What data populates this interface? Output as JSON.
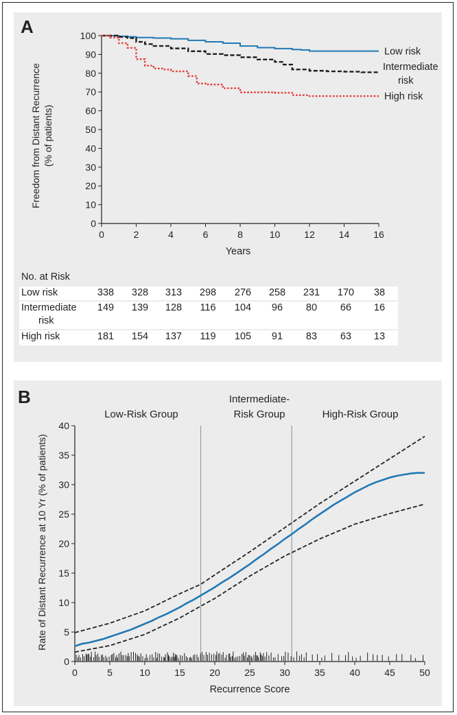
{
  "figure": {
    "panels": [
      {
        "letter": "A",
        "ylabel_line1": "Freedom from Distant Recurrence",
        "ylabel_line2": "(% of patients)",
        "xlabel": "Years",
        "risk_table": {
          "title": "No. at Risk",
          "rows": [
            {
              "label": "Low risk",
              "label_line2": "",
              "values": [
                "338",
                "328",
                "313",
                "298",
                "276",
                "258",
                "231",
                "170",
                "38"
              ]
            },
            {
              "label": "Intermediate",
              "label_line2": "risk",
              "values": [
                "149",
                "139",
                "128",
                "116",
                "104",
                "96",
                "80",
                "66",
                "16"
              ]
            },
            {
              "label": "High risk",
              "label_line2": "",
              "values": [
                "181",
                "154",
                "137",
                "119",
                "105",
                "91",
                "83",
                "63",
                "13"
              ]
            }
          ]
        }
      },
      {
        "letter": "B",
        "ylabel": "Rate of Distant Recurrence at 10 Yr (% of patients)",
        "xlabel": "Recurrence Score",
        "group_labels": [
          {
            "line1": "Low-Risk Group",
            "line2": ""
          },
          {
            "line1": "Intermediate-",
            "line2": "Risk Group"
          },
          {
            "line1": "High-Risk Group",
            "line2": ""
          }
        ]
      }
    ]
  },
  "chart_data": [
    {
      "type": "line",
      "panel": "A",
      "xlim": [
        0,
        16
      ],
      "ylim": [
        0,
        100
      ],
      "xticks": [
        0,
        2,
        4,
        6,
        8,
        10,
        12,
        14,
        16
      ],
      "yticks": [
        0,
        10,
        20,
        30,
        40,
        50,
        60,
        70,
        80,
        90,
        100
      ],
      "grid": false,
      "series": [
        {
          "name": "Low risk",
          "color": "#1f78b4",
          "style": "solid",
          "label_lines": [
            "Low risk"
          ],
          "x": [
            0,
            0.5,
            1,
            1.5,
            2,
            3,
            4,
            5,
            6,
            7,
            8,
            9,
            10,
            11,
            11.5,
            12,
            13,
            14,
            15,
            16
          ],
          "y": [
            100,
            100,
            99.7,
            99.4,
            99,
            98.7,
            98.3,
            97.5,
            96.7,
            96,
            94.5,
            93.6,
            93.1,
            92.6,
            92.4,
            91.8,
            91.8,
            91.8,
            91.8,
            91.8
          ]
        },
        {
          "name": "Intermediate risk",
          "color": "#231f20",
          "style": "dashed",
          "label_lines": [
            "Intermediate",
            "risk"
          ],
          "x": [
            0,
            0.5,
            1,
            1.5,
            2,
            2.5,
            3,
            4,
            5,
            6,
            7,
            8,
            9,
            10,
            10.5,
            11,
            12,
            13,
            14,
            15,
            16
          ],
          "y": [
            100,
            100,
            99.3,
            98.7,
            96.7,
            95.5,
            94.5,
            93.2,
            91.7,
            90.2,
            89.6,
            88.5,
            87.3,
            86,
            84.6,
            82,
            81.3,
            81,
            80.8,
            80.5,
            80.3
          ]
        },
        {
          "name": "High risk",
          "color": "#e53935",
          "style": "dotted",
          "label_lines": [
            "High risk"
          ],
          "x": [
            0,
            0.5,
            1,
            1.5,
            2,
            2.5,
            3,
            3.5,
            4,
            5,
            5.5,
            6,
            6.5,
            7,
            8,
            9,
            10,
            11,
            12,
            13,
            14,
            15,
            16
          ],
          "y": [
            100,
            99,
            96,
            93.5,
            87.5,
            84,
            82.5,
            82,
            81,
            78.5,
            74.5,
            74,
            74,
            72,
            69.8,
            69.8,
            69.6,
            68.3,
            67.8,
            67.8,
            67.8,
            67.8,
            67.8
          ]
        }
      ]
    },
    {
      "type": "line",
      "panel": "B",
      "xlim": [
        0,
        50
      ],
      "ylim": [
        0,
        40
      ],
      "xticks": [
        0,
        5,
        10,
        15,
        20,
        25,
        30,
        35,
        40,
        45,
        50
      ],
      "yticks": [
        0,
        5,
        10,
        15,
        20,
        25,
        30,
        35,
        40
      ],
      "grid": false,
      "cutoffs": [
        18,
        31
      ],
      "series": [
        {
          "name": "Estimate",
          "color": "#1f78b4",
          "style": "solid",
          "x": [
            0,
            1,
            2,
            3,
            4,
            5,
            6,
            7,
            8,
            9,
            10,
            11,
            12,
            13,
            14,
            15,
            16,
            17,
            18,
            19,
            20,
            21,
            22,
            23,
            24,
            25,
            26,
            27,
            28,
            29,
            30,
            31,
            32,
            33,
            34,
            35,
            36,
            37,
            38,
            39,
            40,
            41,
            42,
            43,
            44,
            45,
            46,
            47,
            48,
            49,
            50
          ],
          "y": [
            2.6,
            3.0,
            3.2,
            3.5,
            3.8,
            4.2,
            4.6,
            5.0,
            5.4,
            5.9,
            6.4,
            6.9,
            7.5,
            8.0,
            8.6,
            9.2,
            9.9,
            10.5,
            11.2,
            11.9,
            12.6,
            13.4,
            14.1,
            14.9,
            15.7,
            16.5,
            17.4,
            18.2,
            19.1,
            19.9,
            20.8,
            21.6,
            22.5,
            23.3,
            24.2,
            25.0,
            25.8,
            26.6,
            27.3,
            28.0,
            28.7,
            29.3,
            29.9,
            30.4,
            30.8,
            31.2,
            31.5,
            31.7,
            31.9,
            32.0,
            32.0
          ]
        },
        {
          "name": "Upper 95% CI",
          "color": "#231f20",
          "style": "dashed",
          "x": [
            0,
            5,
            10,
            15,
            18,
            20,
            25,
            30,
            35,
            40,
            45,
            50
          ],
          "y": [
            4.9,
            6.5,
            8.6,
            11.5,
            13.1,
            14.7,
            18.6,
            22.7,
            26.8,
            30.6,
            34.4,
            38.2
          ]
        },
        {
          "name": "Lower 95% CI",
          "color": "#231f20",
          "style": "dashed",
          "x": [
            0,
            5,
            10,
            15,
            18,
            20,
            25,
            30,
            35,
            40,
            45,
            50
          ],
          "y": [
            1.6,
            2.7,
            4.6,
            7.4,
            9.4,
            10.7,
            14.5,
            17.9,
            20.8,
            23.3,
            25.1,
            26.7
          ]
        }
      ]
    }
  ]
}
